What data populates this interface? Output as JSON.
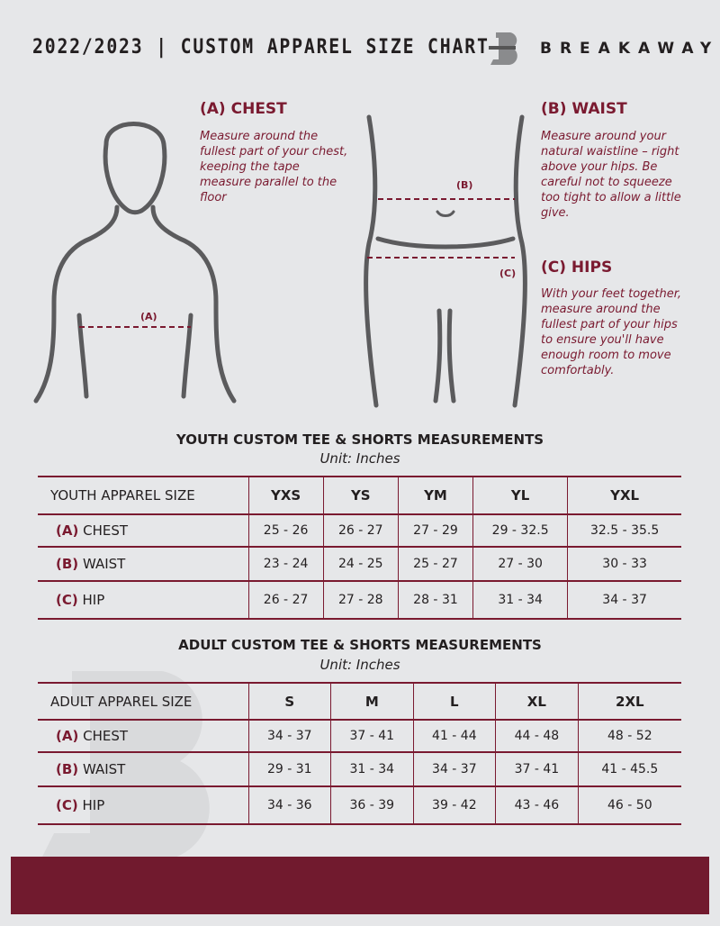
{
  "header": {
    "title": "2022/2023  |  CUSTOM APPAREL SIZE CHART",
    "brand": "BREAKAWAY"
  },
  "chest": {
    "heading": "(A) CHEST",
    "text": "Measure around the fullest part of your chest, keeping the tape measure parallel to the floor",
    "marker": "(A)"
  },
  "waist": {
    "heading": "(B) WAIST",
    "text": "Measure around your natural waistline – right above your hips. Be careful not to squeeze too tight to allow a little give.",
    "marker": "(B)"
  },
  "hips": {
    "heading": "(C) HIPS",
    "text": "With your feet together, measure around the fullest part of your hips to ensure you'll have enough room to move comfortably.",
    "marker": "(C)"
  },
  "colors": {
    "accent": "#7a1a30",
    "background": "#e6e7e9",
    "footer": "#711a2e"
  },
  "youth": {
    "title": "YOUTH CUSTOM TEE & SHORTS MEASUREMENTS",
    "unit": "Unit: Inches",
    "header": [
      "YOUTH APPAREL SIZE",
      "YXS",
      "YS",
      "YM",
      "YL",
      "YXL"
    ],
    "rows": [
      {
        "tag": "(A)",
        "label": "CHEST",
        "values": [
          "25 - 26",
          "26 - 27",
          "27 - 29",
          "29 - 32.5",
          "32.5 - 35.5"
        ]
      },
      {
        "tag": "(B)",
        "label": "WAIST",
        "values": [
          "23 - 24",
          "24 - 25",
          "25 - 27",
          "27 - 30",
          "30 - 33"
        ]
      },
      {
        "tag": "(C)",
        "label": "HIP",
        "values": [
          "26 - 27",
          "27 - 28",
          "28 - 31",
          "31 - 34",
          "34 - 37"
        ]
      }
    ]
  },
  "adult": {
    "title": "ADULT CUSTOM TEE & SHORTS MEASUREMENTS",
    "unit": "Unit: Inches",
    "header": [
      "ADULT APPAREL SIZE",
      "S",
      "M",
      "L",
      "XL",
      "2XL"
    ],
    "rows": [
      {
        "tag": "(A)",
        "label": "CHEST",
        "values": [
          "34 - 37",
          "37 - 41",
          "41 - 44",
          "44 - 48",
          "48 - 52"
        ]
      },
      {
        "tag": "(B)",
        "label": "WAIST",
        "values": [
          "29 - 31",
          "31 - 34",
          "34 - 37",
          "37 - 41",
          "41 - 45.5"
        ]
      },
      {
        "tag": "(C)",
        "label": "HIP",
        "values": [
          "34 - 36",
          "36 - 39",
          "39 - 42",
          "43 - 46",
          "46 - 50"
        ]
      }
    ]
  }
}
